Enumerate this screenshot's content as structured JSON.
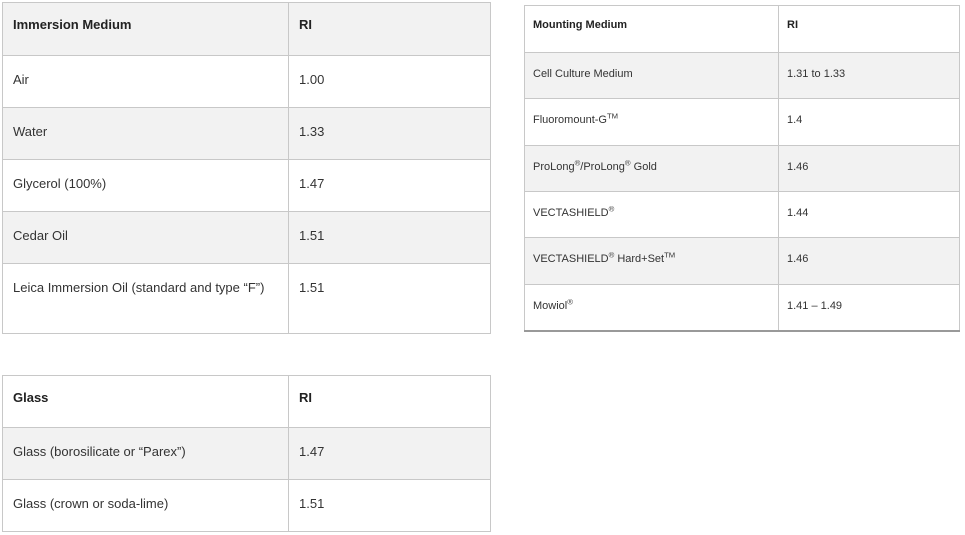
{
  "tables": [
    {
      "id": "t1",
      "name": "immersion-medium-table",
      "header_gray": true,
      "headers": [
        "Immersion Medium",
        "RI"
      ],
      "rows": [
        {
          "name": [
            {
              "t": "Air"
            }
          ],
          "ri": "1.00"
        },
        {
          "name": [
            {
              "t": "Water"
            }
          ],
          "ri": "1.33"
        },
        {
          "name": [
            {
              "t": "Glycerol (100%)"
            }
          ],
          "ri": "1.47"
        },
        {
          "name": [
            {
              "t": "Cedar Oil"
            }
          ],
          "ri": "1.51"
        },
        {
          "name": [
            {
              "t": "Leica Immersion Oil (standard and type “F”)"
            }
          ],
          "ri": "1.51"
        }
      ]
    },
    {
      "id": "t2",
      "name": "mounting-medium-table",
      "header_gray": false,
      "headers": [
        "Mounting Medium",
        "RI"
      ],
      "rows": [
        {
          "name": [
            {
              "t": "Cell Culture Medium"
            }
          ],
          "ri": "1.31 to 1.33"
        },
        {
          "name": [
            {
              "t": "Fluoromount-G"
            },
            {
              "t": "TM",
              "sup": true
            }
          ],
          "ri": "1.4"
        },
        {
          "name": [
            {
              "t": "ProLong"
            },
            {
              "t": "®",
              "sup": true
            },
            {
              "t": "/ProLong"
            },
            {
              "t": "®",
              "sup": true
            },
            {
              "t": " Gold"
            }
          ],
          "ri": "1.46"
        },
        {
          "name": [
            {
              "t": "VECTASHIELD"
            },
            {
              "t": "®",
              "sup": true
            }
          ],
          "ri": "1.44"
        },
        {
          "name": [
            {
              "t": "VECTASHIELD"
            },
            {
              "t": "®",
              "sup": true
            },
            {
              "t": " Hard+Set"
            },
            {
              "t": "TM",
              "sup": true
            }
          ],
          "ri": "1.46"
        },
        {
          "name": [
            {
              "t": "Mowiol"
            },
            {
              "t": "®",
              "sup": true
            }
          ],
          "ri": "1.41 – 1.49"
        }
      ]
    },
    {
      "id": "t3",
      "name": "glass-table",
      "header_gray": false,
      "headers": [
        "Glass",
        "RI"
      ],
      "rows": [
        {
          "name": [
            {
              "t": "Glass (borosilicate or “Parex”)"
            }
          ],
          "ri": "1.47"
        },
        {
          "name": [
            {
              "t": "Glass (crown or soda-lime)"
            }
          ],
          "ri": "1.51"
        }
      ]
    }
  ],
  "colors": {
    "border": "#c8c8c8",
    "stripe": "#f2f2f2",
    "text": "#333333"
  }
}
